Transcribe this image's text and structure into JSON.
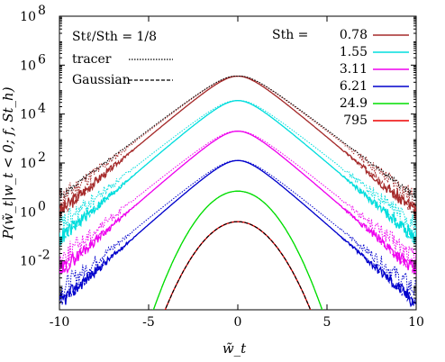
{
  "chart_data": {
    "type": "line",
    "title": "",
    "xlabel": "w̃_t",
    "ylabel": "P(w̃_t|w_t < 0; f, St_h)",
    "xlim": [
      -10,
      10
    ],
    "ylim_log10": [
      -4,
      8
    ],
    "y_scale": "log",
    "x_ticks": [
      -10,
      -5,
      0,
      5,
      10
    ],
    "x_tick_labels": [
      "-10",
      "-5",
      "0",
      "5",
      "10"
    ],
    "y_ticks_log10": [
      -2,
      0,
      2,
      4,
      6,
      8
    ],
    "y_tick_labels": [
      "10^-2",
      "10^0",
      "10^2",
      "10^4",
      "10^6",
      "10^8"
    ],
    "inset_text": {
      "ratio_label": "Stℓ/Sth = 1/8",
      "tracer_label": "tracer",
      "gaussian_label": "Gaussian"
    },
    "legend_title": "Sth =",
    "legend_position": "top-right",
    "grid": false,
    "series": [
      {
        "name": "0.78",
        "color": "#a52a2a",
        "peak": 5.55,
        "a": 0.62,
        "b": 0.28,
        "width": 1.0
      },
      {
        "name": "1.55",
        "color": "#00dddd",
        "peak": 4.55,
        "a": 0.63,
        "b": 0.29,
        "width": 1.0
      },
      {
        "name": "3.11",
        "color": "#ee00ee",
        "peak": 3.3,
        "a": 0.64,
        "b": 0.3,
        "width": 1.0
      },
      {
        "name": "6.21",
        "color": "#0000cc",
        "peak": 2.1,
        "a": 0.65,
        "b": 0.31,
        "width": 1.0
      },
      {
        "name": "24.9",
        "color": "#00dd00",
        "peak": 0.85,
        "a": 0.0,
        "b": 0.0,
        "width": 1.0
      },
      {
        "name": "795",
        "color": "#ee0000",
        "peak": -0.4,
        "a": 0.0,
        "b": 0.0,
        "width": 1.0
      }
    ]
  }
}
